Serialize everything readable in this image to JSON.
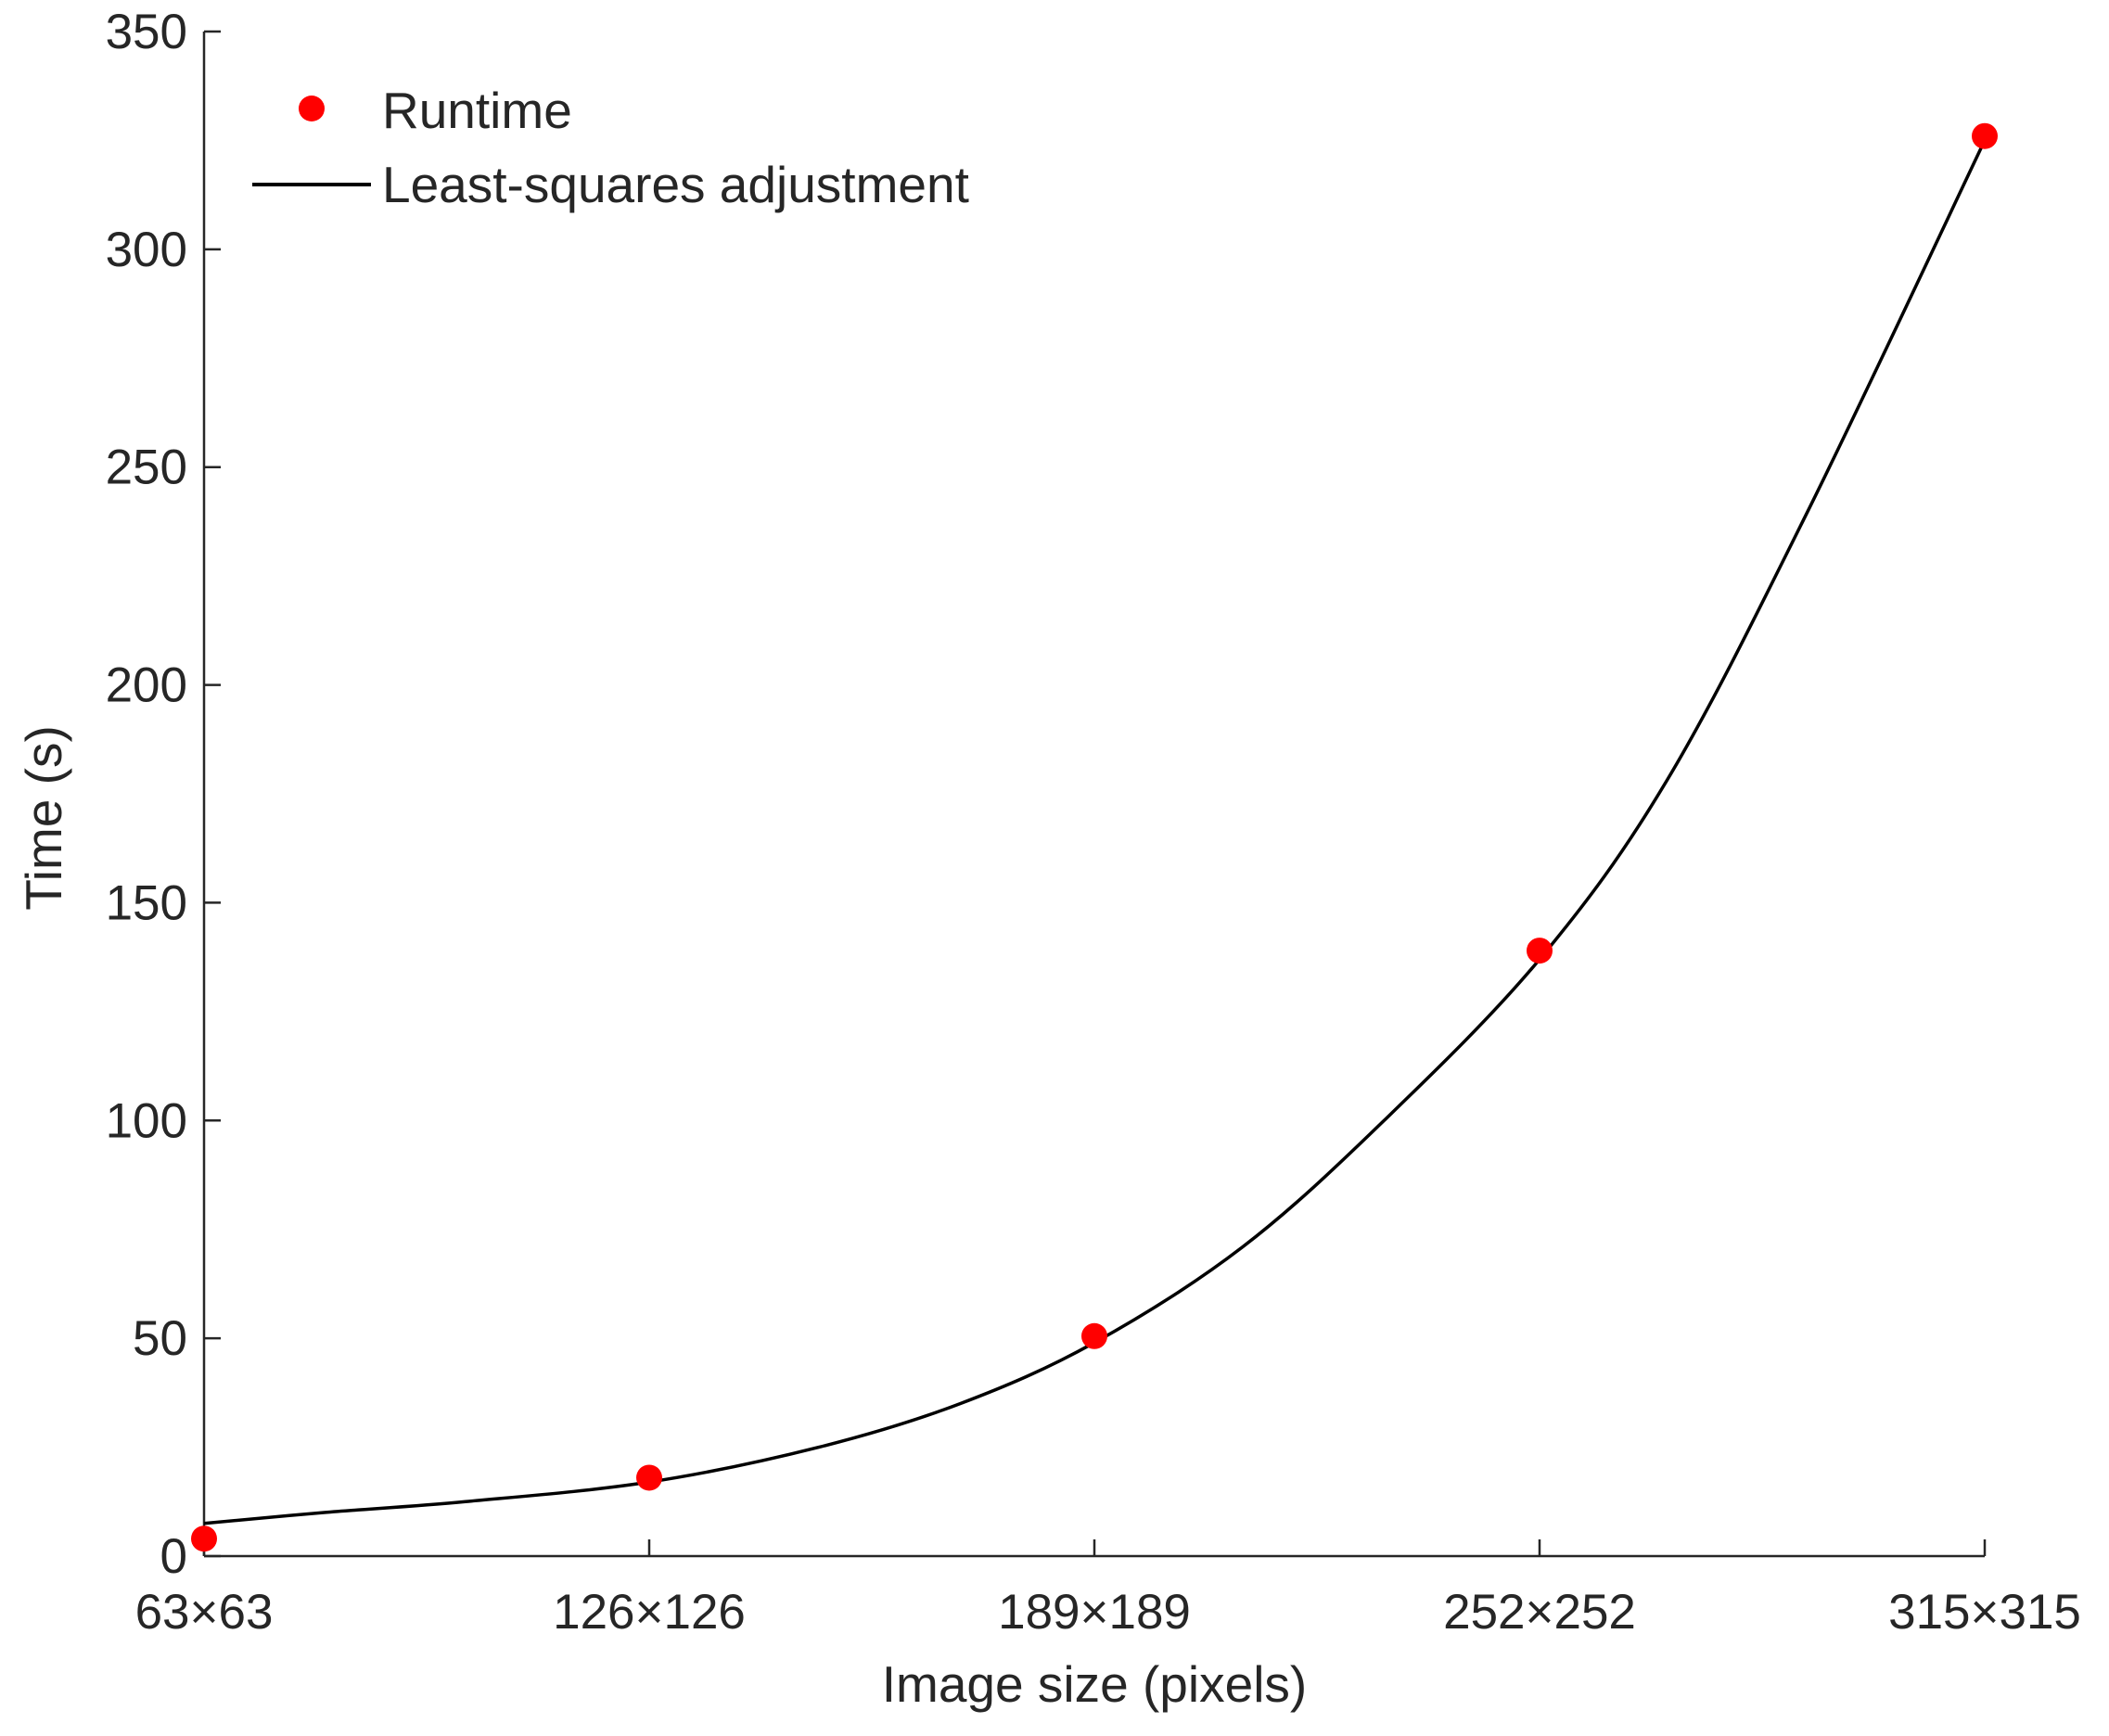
{
  "chart_data": {
    "type": "scatter",
    "title": "",
    "xlabel": "Image size (pixels)",
    "ylabel": "Time (s)",
    "x_categories": [
      "63×63",
      "126×126",
      "189×189",
      "252×252",
      "315×315"
    ],
    "x_values": [
      63,
      126,
      189,
      252,
      315
    ],
    "xlim": [
      63,
      315
    ],
    "ylim": [
      0,
      350
    ],
    "yticks": [
      0,
      50,
      100,
      150,
      200,
      250,
      300,
      350
    ],
    "grid": false,
    "legend_position": "top-left",
    "series": [
      {
        "name": "Runtime",
        "kind": "points",
        "color": "#ff0000",
        "x": [
          63,
          126,
          189,
          252,
          315
        ],
        "y": [
          4,
          18,
          50.5,
          139,
          326
        ]
      },
      {
        "name": "Least-squares adjustment",
        "kind": "curve",
        "color": "#000000",
        "x": [
          63,
          80,
          100,
          126,
          150,
          170,
          189,
          210,
          230,
          252,
          270,
          290,
          315
        ],
        "y": [
          7.5,
          10,
          12.5,
          17,
          25,
          35,
          49,
          71,
          100,
          137,
          178,
          240,
          325
        ]
      }
    ]
  }
}
